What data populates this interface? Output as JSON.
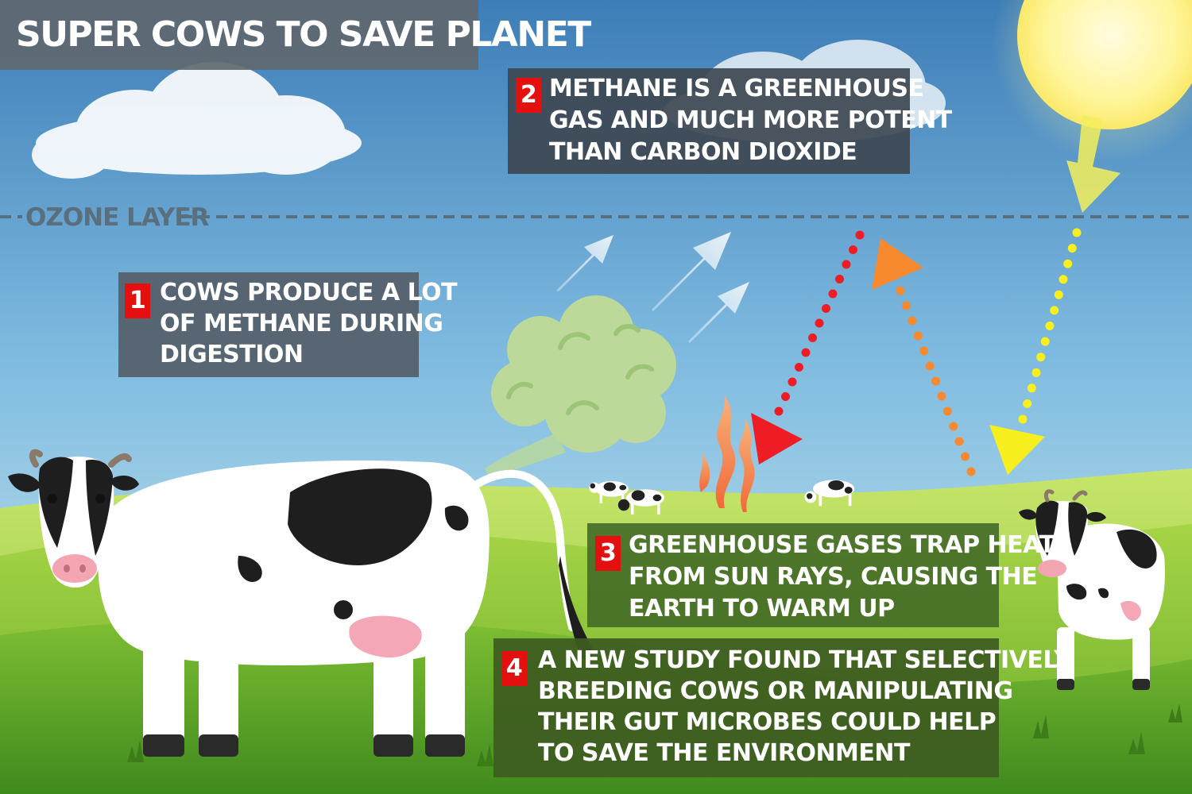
{
  "title": "SUPER COWS TO SAVE PLANET",
  "ozone_label": "OZONE LAYER",
  "steps": [
    {
      "number": "1",
      "lines": [
        "COWS PRODUCE A LOT",
        "OF METHANE DURING",
        "DIGESTION"
      ]
    },
    {
      "number": "2",
      "lines": [
        "METHANE IS A GREENHOUSE",
        "GAS AND MUCH MORE POTENT",
        "THAN CARBON DIOXIDE"
      ]
    },
    {
      "number": "3",
      "lines": [
        "GREENHOUSE GASES TRAP HEAT",
        "FROM SUN RAYS, CAUSING THE",
        "EARTH TO WARM UP"
      ]
    },
    {
      "number": "4",
      "lines": [
        "A NEW STUDY FOUND THAT SELECTIVELY",
        "BREEDING COWS OR MANIPULATING",
        "THEIR GUT MICROBES COULD HELP",
        "TO SAVE THE ENVIRONMENT"
      ]
    }
  ],
  "colors": {
    "sky_top": "#3f7fb8",
    "sky_bottom": "#bfe2ee",
    "grass_light": "#a8d84a",
    "grass_dark": "#4f9a24",
    "step_number_bg": "#e3100f",
    "heat_ray": "#ee1c25",
    "reflected_ray": "#f7892f",
    "sun_ray": "#f7f01e",
    "methane_cloud": "#bcd99a"
  }
}
